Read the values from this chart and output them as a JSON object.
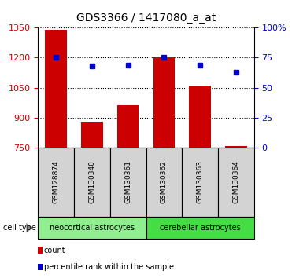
{
  "title": "GDS3366 / 1417080_a_at",
  "samples": [
    "GSM128874",
    "GSM130340",
    "GSM130361",
    "GSM130362",
    "GSM130363",
    "GSM130364"
  ],
  "bar_values": [
    1340,
    880,
    960,
    1200,
    1060,
    755
  ],
  "percentile_values": [
    75,
    68,
    69,
    75,
    69,
    63
  ],
  "bar_color": "#cc0000",
  "point_color": "#0000cc",
  "ylim_left": [
    750,
    1350
  ],
  "ylim_right": [
    0,
    100
  ],
  "yticks_left": [
    750,
    900,
    1050,
    1200,
    1350
  ],
  "yticks_right": [
    0,
    25,
    50,
    75,
    100
  ],
  "ytick_labels_right": [
    "0",
    "25",
    "50",
    "75",
    "100%"
  ],
  "cell_types": [
    {
      "label": "neocortical astrocytes",
      "start": 0,
      "end": 3,
      "color": "#90ee90"
    },
    {
      "label": "cerebellar astrocytes",
      "start": 3,
      "end": 6,
      "color": "#44dd44"
    }
  ],
  "legend_count_label": "count",
  "legend_percentile_label": "percentile rank within the sample",
  "cell_type_label": "cell type",
  "left_axis_color": "#cc0000",
  "right_axis_color": "#0000cc",
  "bar_bottom": 750,
  "bar_width": 0.6,
  "sample_box_color": "#d3d3d3",
  "sample_box_edge": "#000000"
}
